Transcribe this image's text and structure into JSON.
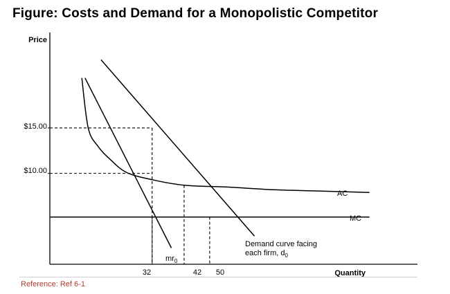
{
  "figure": {
    "title": "Figure: Costs and Demand for a Monopolistic Competitor",
    "reference": "Reference: Ref 6-1"
  },
  "chart_data": {
    "type": "line",
    "xlabel": "Quantity",
    "ylabel": "Price",
    "x_ticks": [
      {
        "value": 32,
        "label": "32"
      },
      {
        "value": 42,
        "label": "42"
      },
      {
        "value": 50,
        "label": "50"
      }
    ],
    "y_ticks": [
      {
        "value": 15,
        "label": "$15.00"
      },
      {
        "value": 10,
        "label": "$10.00"
      }
    ],
    "xlim": [
      0,
      115
    ],
    "ylim": [
      0,
      25.5
    ],
    "grid": false,
    "series": [
      {
        "name": "AC",
        "label": "AC",
        "x": [
          10,
          12,
          15,
          19,
          24,
          32,
          42,
          55,
          70,
          85,
          100
        ],
        "y": [
          20.5,
          15,
          13,
          11.5,
          10.1,
          9.3,
          8.7,
          8.5,
          8.2,
          8.05,
          7.9
        ]
      },
      {
        "name": "MC",
        "label": "MC",
        "x": [
          0,
          100
        ],
        "y": [
          5.2,
          5.2
        ]
      },
      {
        "name": "demand",
        "label_line1": "Demand curve facing",
        "label_line2": "each firm, d",
        "label_sub": "0",
        "x": [
          16,
          64
        ],
        "y": [
          22.5,
          3.1
        ]
      },
      {
        "name": "marginal revenue",
        "label": "mr",
        "label_sub": "0",
        "x": [
          11,
          38
        ],
        "y": [
          20.5,
          1.8
        ]
      }
    ],
    "guides": [
      {
        "x": 32,
        "y": 15
      },
      {
        "x": 32,
        "y": 5.2
      },
      {
        "x": 42,
        "y": 8.7
      },
      {
        "x": 50,
        "y": 5.2
      },
      {
        "x": 0,
        "y": 10,
        "to_x": 32
      }
    ]
  }
}
